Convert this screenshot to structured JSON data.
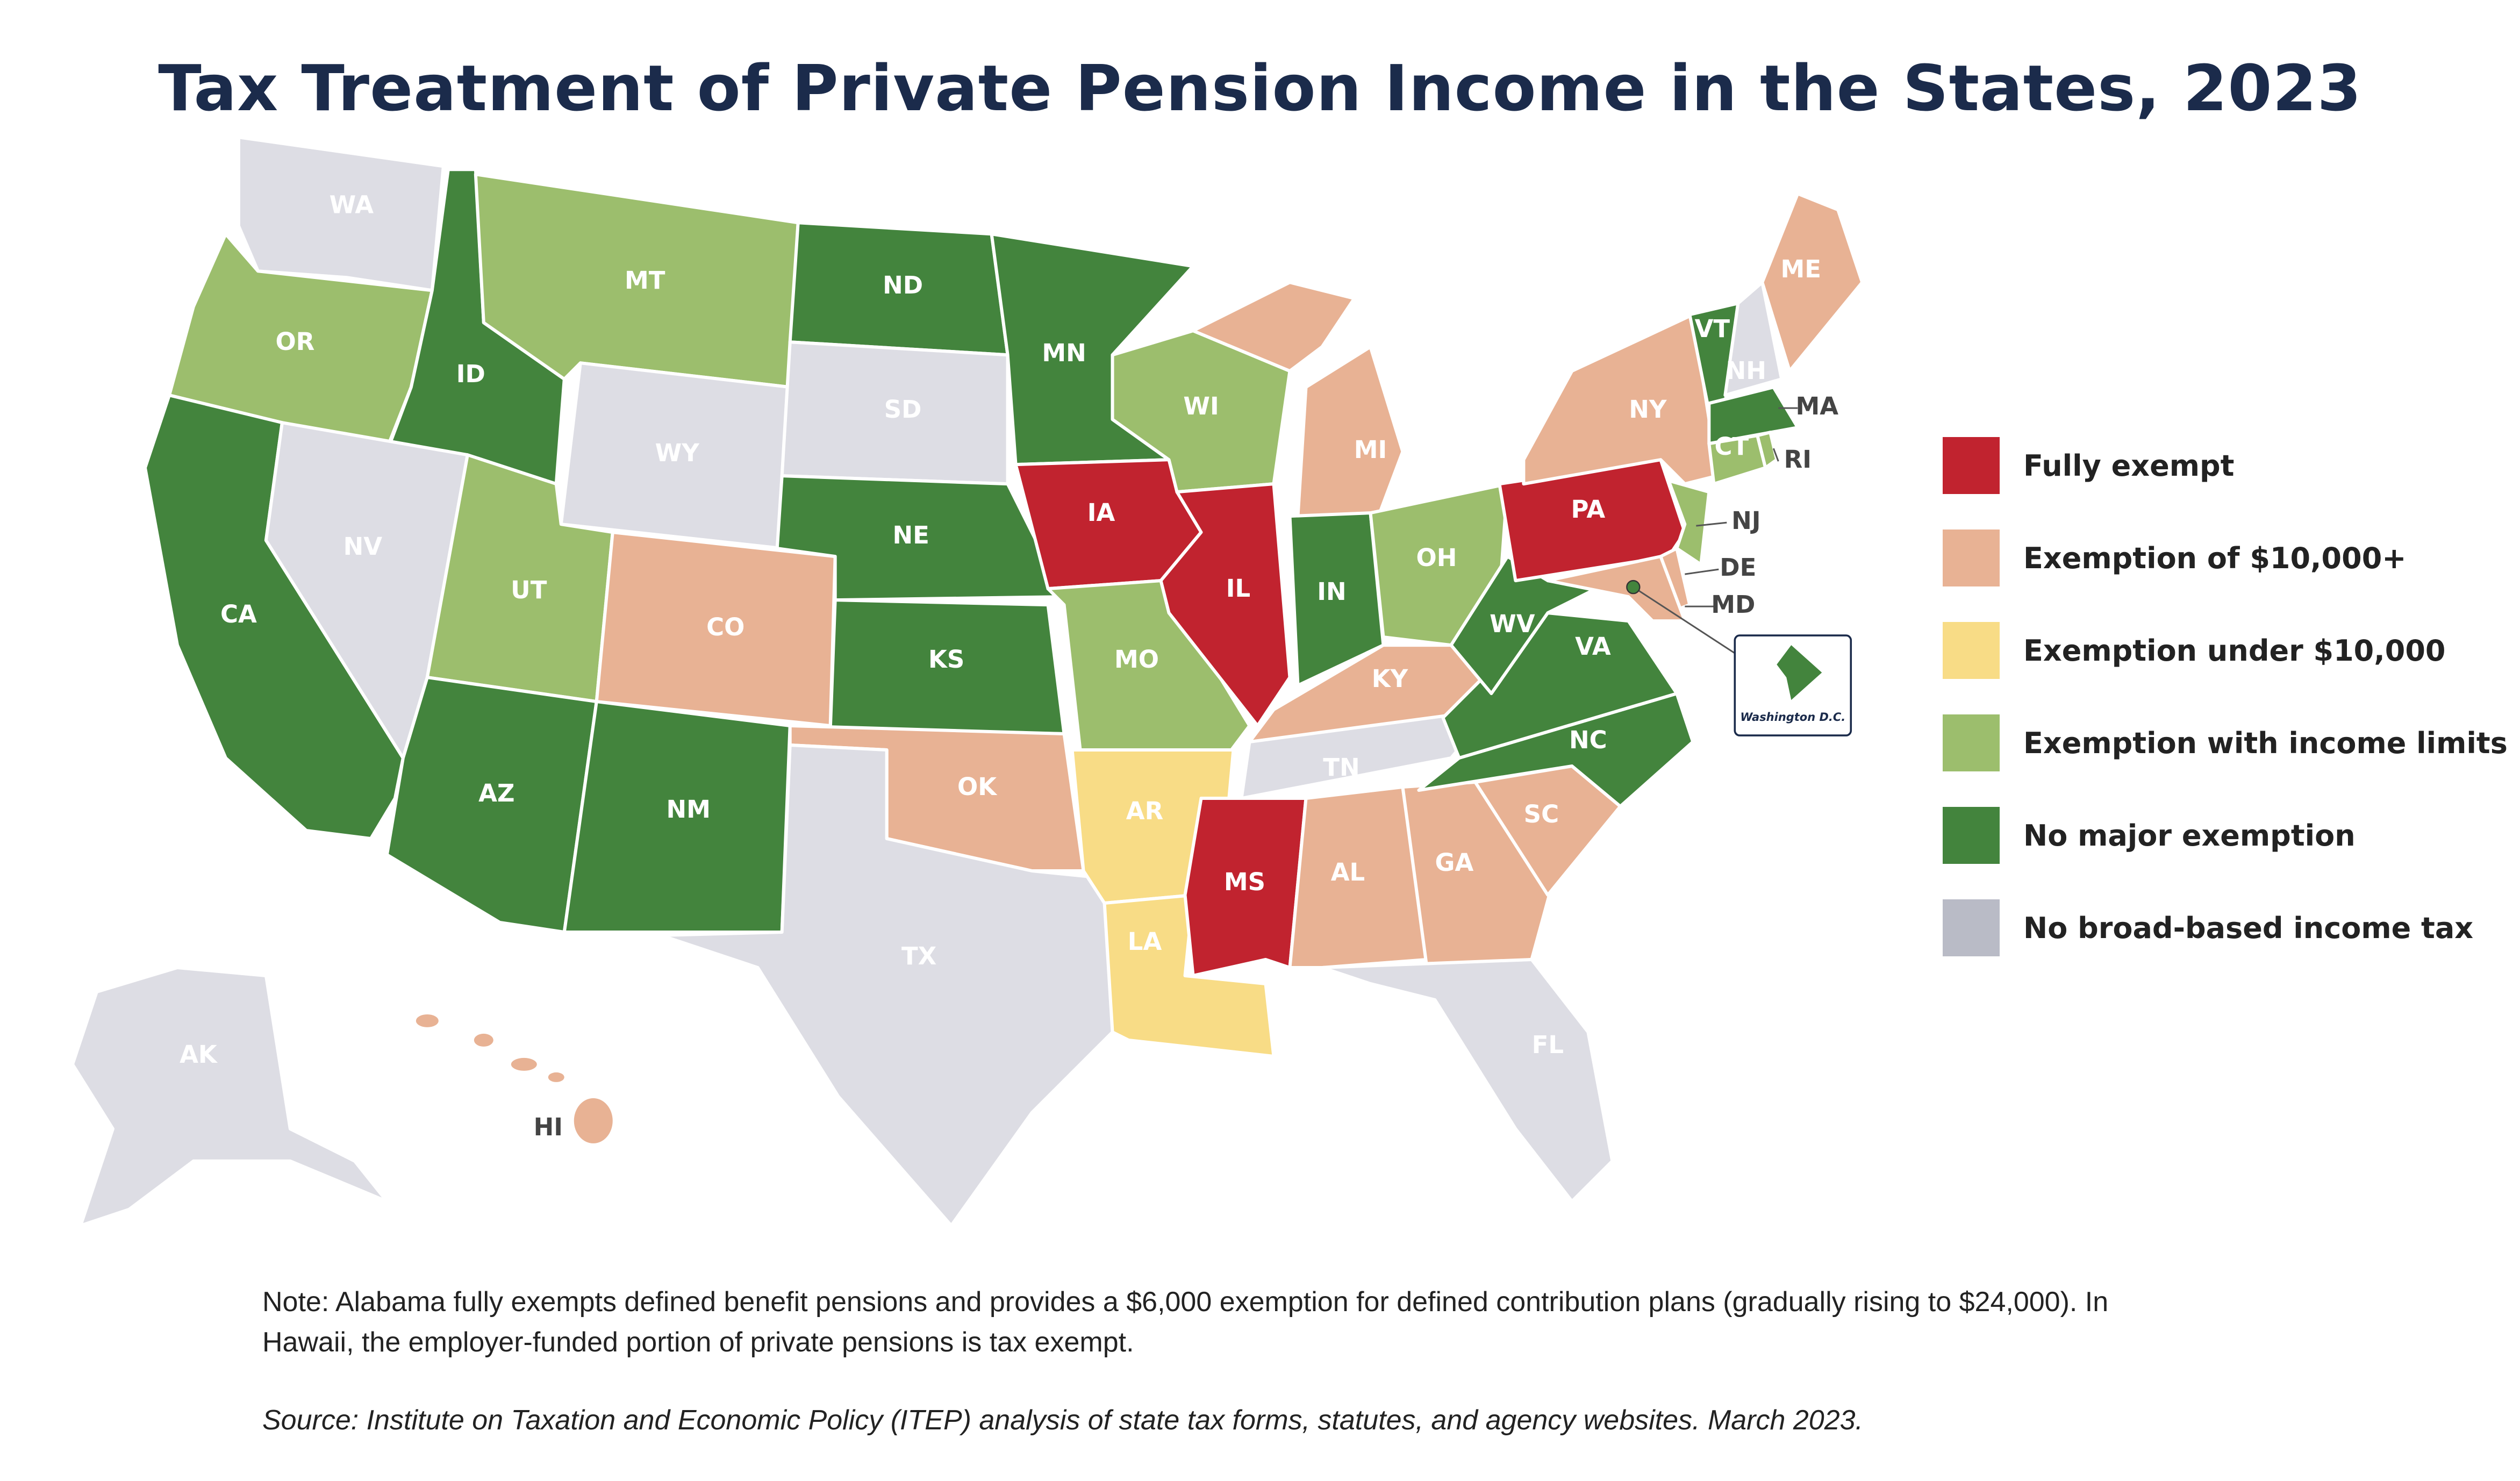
{
  "title": "Tax Treatment of Private Pension Income in the States, 2023",
  "categories": {
    "fully": {
      "label": "Fully exempt",
      "color": "#c1232f"
    },
    "ten_plus": {
      "label": "Exemption of $10,000+",
      "color": "#e8b294"
    },
    "under_ten": {
      "label": "Exemption under $10,000",
      "color": "#f8dc86"
    },
    "limits": {
      "label": "Exemption with income limits",
      "color": "#9cbe6d"
    },
    "none": {
      "label": "No major exemption",
      "color": "#43843d"
    },
    "no_tax": {
      "label": "No broad-based income tax",
      "color": "#dddde4",
      "legend_color": "#b9bbc6"
    }
  },
  "legend": [
    "fully",
    "ten_plus",
    "under_ten",
    "limits",
    "none",
    "no_tax"
  ],
  "states": [
    {
      "abbr": "WA",
      "category": "no_tax"
    },
    {
      "abbr": "OR",
      "category": "limits"
    },
    {
      "abbr": "CA",
      "category": "none"
    },
    {
      "abbr": "ID",
      "category": "none"
    },
    {
      "abbr": "NV",
      "category": "no_tax"
    },
    {
      "abbr": "MT",
      "category": "limits"
    },
    {
      "abbr": "WY",
      "category": "no_tax"
    },
    {
      "abbr": "UT",
      "category": "limits"
    },
    {
      "abbr": "AZ",
      "category": "none"
    },
    {
      "abbr": "CO",
      "category": "ten_plus"
    },
    {
      "abbr": "NM",
      "category": "none"
    },
    {
      "abbr": "ND",
      "category": "none"
    },
    {
      "abbr": "SD",
      "category": "no_tax"
    },
    {
      "abbr": "NE",
      "category": "none"
    },
    {
      "abbr": "KS",
      "category": "none"
    },
    {
      "abbr": "OK",
      "category": "ten_plus"
    },
    {
      "abbr": "TX",
      "category": "no_tax"
    },
    {
      "abbr": "MN",
      "category": "none"
    },
    {
      "abbr": "IA",
      "category": "fully"
    },
    {
      "abbr": "MO",
      "category": "limits"
    },
    {
      "abbr": "AR",
      "category": "under_ten"
    },
    {
      "abbr": "LA",
      "category": "under_ten"
    },
    {
      "abbr": "WI",
      "category": "limits"
    },
    {
      "abbr": "IL",
      "category": "fully"
    },
    {
      "abbr": "MI",
      "category": "ten_plus"
    },
    {
      "abbr": "IN",
      "category": "none"
    },
    {
      "abbr": "OH",
      "category": "limits"
    },
    {
      "abbr": "KY",
      "category": "ten_plus"
    },
    {
      "abbr": "TN",
      "category": "no_tax"
    },
    {
      "abbr": "MS",
      "category": "fully"
    },
    {
      "abbr": "AL",
      "category": "ten_plus"
    },
    {
      "abbr": "GA",
      "category": "ten_plus"
    },
    {
      "abbr": "FL",
      "category": "no_tax"
    },
    {
      "abbr": "SC",
      "category": "ten_plus"
    },
    {
      "abbr": "NC",
      "category": "none"
    },
    {
      "abbr": "VA",
      "category": "none"
    },
    {
      "abbr": "WV",
      "category": "none"
    },
    {
      "abbr": "PA",
      "category": "fully"
    },
    {
      "abbr": "NY",
      "category": "ten_plus"
    },
    {
      "abbr": "VT",
      "category": "none"
    },
    {
      "abbr": "NH",
      "category": "no_tax"
    },
    {
      "abbr": "ME",
      "category": "ten_plus"
    },
    {
      "abbr": "MA",
      "category": "none"
    },
    {
      "abbr": "CT",
      "category": "limits"
    },
    {
      "abbr": "RI",
      "category": "limits"
    },
    {
      "abbr": "NJ",
      "category": "limits"
    },
    {
      "abbr": "DE",
      "category": "ten_plus"
    },
    {
      "abbr": "MD",
      "category": "ten_plus"
    },
    {
      "abbr": "AK",
      "category": "no_tax"
    },
    {
      "abbr": "HI",
      "category": "ten_plus"
    },
    {
      "abbr": "DC",
      "category": "none"
    }
  ],
  "inset_label": "Washington D.C.",
  "note": "Note: Alabama fully exempts defined benefit pensions and provides a $6,000 exemption for defined contribution plans (gradually rising to $24,000). In Hawaii, the employer-funded portion of private pensions is tax exempt.",
  "source": "Source: Institute on Taxation and Economic Policy (ITEP) analysis of state tax forms, statutes, and agency websites. March 2023."
}
